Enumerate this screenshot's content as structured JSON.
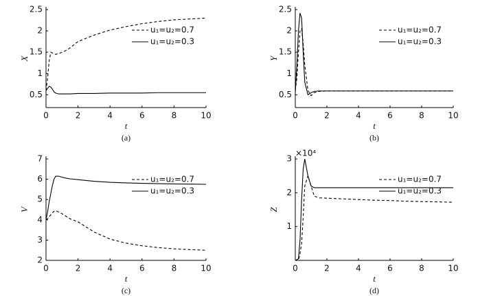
{
  "chart_data": [
    {
      "type": "line",
      "caption": "(a)",
      "x_label": "t",
      "y_label": "X",
      "x": [
        0,
        0.1,
        0.2,
        0.3,
        0.4,
        0.5,
        0.6,
        0.8,
        1,
        1.2,
        1.5,
        2,
        3,
        4,
        5,
        6,
        7,
        8,
        9,
        10
      ],
      "xlim": [
        0,
        10
      ],
      "xticks": [
        0,
        2,
        4,
        6,
        8,
        10
      ],
      "ylim": [
        0.2,
        2.5
      ],
      "yticks": [
        0.5,
        1.0,
        1.5,
        2.0,
        2.5
      ],
      "series": [
        {
          "name": "u₁=u₂=0.7",
          "color": "#000000",
          "line_style": "dashed",
          "values": [
            0.6,
            0.9,
            1.3,
            1.5,
            1.48,
            1.46,
            1.45,
            1.47,
            1.5,
            1.53,
            1.6,
            1.75,
            1.9,
            2.02,
            2.1,
            2.17,
            2.22,
            2.26,
            2.28,
            2.3
          ]
        },
        {
          "name": "u₁=u₂=0.3",
          "color": "#000000",
          "line_style": "solid",
          "values": [
            0.6,
            0.65,
            0.7,
            0.68,
            0.63,
            0.57,
            0.54,
            0.52,
            0.52,
            0.52,
            0.52,
            0.53,
            0.53,
            0.54,
            0.54,
            0.54,
            0.55,
            0.55,
            0.55,
            0.55
          ]
        }
      ]
    },
    {
      "type": "line",
      "caption": "(b)",
      "x_label": "t",
      "y_label": "Y",
      "x": [
        0,
        0.1,
        0.2,
        0.3,
        0.4,
        0.5,
        0.6,
        0.8,
        1,
        1.2,
        1.5,
        2,
        3,
        4,
        5,
        6,
        7,
        8,
        9,
        10
      ],
      "xlim": [
        0,
        10
      ],
      "xticks": [
        0,
        2,
        4,
        6,
        8,
        10
      ],
      "ylim": [
        0.2,
        2.5
      ],
      "yticks": [
        0.5,
        1.0,
        1.5,
        2.0,
        2.5
      ],
      "series": [
        {
          "name": "u₁=u₂=0.7",
          "color": "#000000",
          "line_style": "dashed",
          "values": [
            0.6,
            0.9,
            1.5,
            2.0,
            2.05,
            1.7,
            1.2,
            0.6,
            0.48,
            0.55,
            0.58,
            0.59,
            0.59,
            0.59,
            0.59,
            0.59,
            0.59,
            0.59,
            0.59,
            0.59
          ]
        },
        {
          "name": "u₁=u₂=0.3",
          "color": "#000000",
          "line_style": "solid",
          "values": [
            0.55,
            1.2,
            2.0,
            2.42,
            2.3,
            1.5,
            0.8,
            0.5,
            0.55,
            0.58,
            0.59,
            0.59,
            0.59,
            0.59,
            0.59,
            0.59,
            0.59,
            0.59,
            0.59,
            0.59
          ]
        }
      ]
    },
    {
      "type": "line",
      "caption": "(c)",
      "x_label": "t",
      "y_label": "V",
      "x": [
        0,
        0.1,
        0.2,
        0.3,
        0.4,
        0.5,
        0.6,
        0.8,
        1,
        1.2,
        1.5,
        2,
        3,
        4,
        5,
        6,
        7,
        8,
        9,
        10
      ],
      "xlim": [
        0,
        10
      ],
      "xticks": [
        0,
        2,
        4,
        6,
        8,
        10
      ],
      "ylim": [
        2,
        7
      ],
      "yticks": [
        2,
        3,
        4,
        5,
        6,
        7
      ],
      "series": [
        {
          "name": "u₁=u₂=0.7",
          "color": "#000000",
          "line_style": "dashed",
          "values": [
            4,
            4.05,
            4.15,
            4.25,
            4.35,
            4.42,
            4.45,
            4.38,
            4.3,
            4.2,
            4.05,
            3.9,
            3.4,
            3.05,
            2.85,
            2.72,
            2.63,
            2.57,
            2.53,
            2.5
          ]
        },
        {
          "name": "u₁=u₂=0.3",
          "color": "#000000",
          "line_style": "solid",
          "values": [
            4,
            4.4,
            4.9,
            5.3,
            5.7,
            6.0,
            6.15,
            6.15,
            6.1,
            6.06,
            6.02,
            5.98,
            5.9,
            5.85,
            5.82,
            5.8,
            5.78,
            5.77,
            5.76,
            5.75
          ]
        }
      ]
    },
    {
      "type": "line",
      "caption": "(d)",
      "x_label": "t",
      "y_label": "Z",
      "y_multiplier": "×10⁴",
      "x": [
        0,
        0.1,
        0.2,
        0.3,
        0.4,
        0.5,
        0.6,
        0.8,
        1,
        1.2,
        1.5,
        2,
        3,
        4,
        5,
        6,
        7,
        8,
        9,
        10
      ],
      "xlim": [
        0,
        10
      ],
      "xticks": [
        0,
        2,
        4,
        6,
        8,
        10
      ],
      "ylim": [
        0,
        3
      ],
      "yticks": [
        1,
        2,
        3
      ],
      "series": [
        {
          "name": "u₁=u₂=0.7",
          "color": "#000000",
          "line_style": "dashed",
          "values": [
            0,
            0,
            0,
            0.2,
            0.5,
            1.3,
            2.2,
            2.5,
            2.2,
            1.9,
            1.85,
            1.84,
            1.82,
            1.8,
            1.78,
            1.77,
            1.75,
            1.74,
            1.73,
            1.72
          ]
        },
        {
          "name": "u₁=u₂=0.3",
          "color": "#000000",
          "line_style": "solid",
          "values": [
            0,
            0.02,
            0.05,
            0.6,
            1.8,
            2.7,
            3.0,
            2.5,
            2.2,
            2.15,
            2.15,
            2.15,
            2.15,
            2.15,
            2.15,
            2.15,
            2.15,
            2.15,
            2.15,
            2.15
          ]
        }
      ]
    }
  ]
}
